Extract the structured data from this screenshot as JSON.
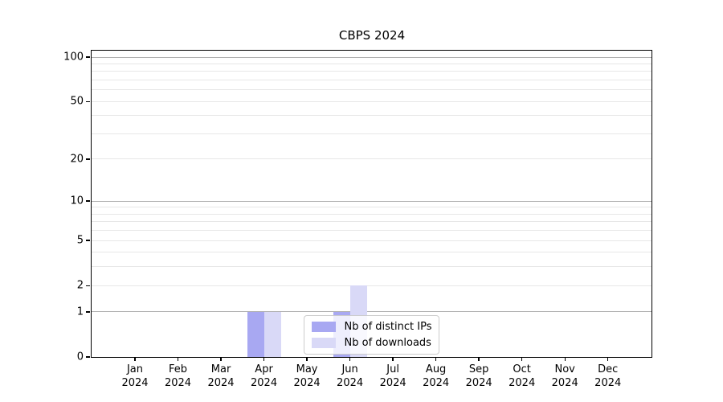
{
  "chart_data": {
    "type": "bar",
    "title": "CBPS 2024",
    "xlabel": "",
    "ylabel": "",
    "categories": [
      "Jan 2024",
      "Feb 2024",
      "Mar 2024",
      "Apr 2024",
      "May 2024",
      "Jun 2024",
      "Jul 2024",
      "Aug 2024",
      "Sep 2024",
      "Oct 2024",
      "Nov 2024",
      "Dec 2024"
    ],
    "series": [
      {
        "name": "Nb of distinct IPs",
        "color": "#a8a8f2",
        "values": [
          0,
          0,
          0,
          1,
          0,
          1,
          0,
          0,
          0,
          0,
          0,
          0
        ]
      },
      {
        "name": "Nb of downloads",
        "color": "#d9d9f7",
        "values": [
          0,
          0,
          0,
          1,
          0,
          2,
          0,
          0,
          0,
          0,
          0,
          0
        ]
      }
    ],
    "yscale": "log10(value+1)",
    "ylim": [
      0,
      110
    ],
    "y_ticks": [
      0,
      1,
      2,
      5,
      10,
      20,
      50,
      100
    ],
    "grid": {
      "major_values": [
        1,
        10,
        100
      ],
      "minor_values": [
        2,
        3,
        4,
        5,
        6,
        7,
        8,
        9,
        20,
        30,
        40,
        50,
        60,
        70,
        80,
        90
      ]
    },
    "legend": {
      "position": "lower center",
      "entries": [
        "Nb of distinct IPs",
        "Nb of downloads"
      ]
    }
  }
}
